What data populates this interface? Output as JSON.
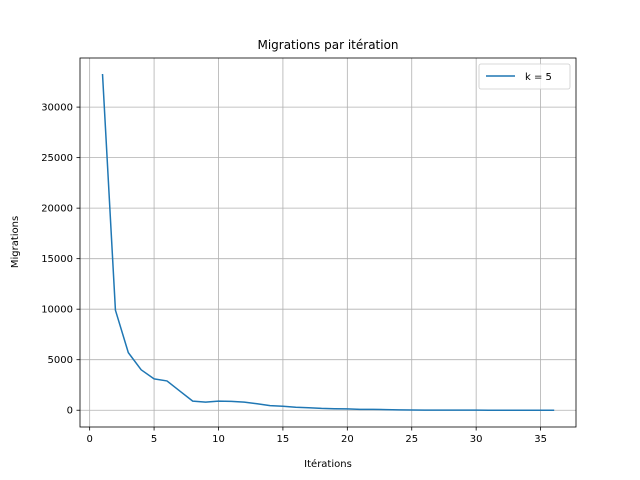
{
  "chart_data": {
    "type": "line",
    "title": "Migrations par itération",
    "xlabel": "Itérations",
    "ylabel": "Migrations",
    "xlim": [
      -0.75,
      37.75
    ],
    "ylim": [
      -1660,
      34860
    ],
    "xticks": [
      0,
      5,
      10,
      15,
      20,
      25,
      30,
      35
    ],
    "yticks": [
      0,
      5000,
      10000,
      15000,
      20000,
      25000,
      30000
    ],
    "grid": true,
    "legend_position": "top-right",
    "series": [
      {
        "name": "k = 5",
        "color": "#1f77b4",
        "x": [
          1,
          2,
          3,
          4,
          5,
          6,
          7,
          8,
          9,
          10,
          11,
          12,
          13,
          14,
          15,
          16,
          17,
          18,
          19,
          20,
          21,
          22,
          23,
          24,
          25,
          26,
          27,
          28,
          29,
          30,
          31,
          32,
          33,
          34,
          35,
          36
        ],
        "y": [
          33200,
          9900,
          5700,
          4000,
          3100,
          2900,
          1900,
          900,
          800,
          900,
          880,
          800,
          640,
          460,
          390,
          300,
          250,
          180,
          150,
          130,
          90,
          80,
          60,
          30,
          20,
          15,
          10,
          8,
          6,
          5,
          4,
          3,
          2,
          1,
          1,
          0
        ]
      }
    ]
  }
}
